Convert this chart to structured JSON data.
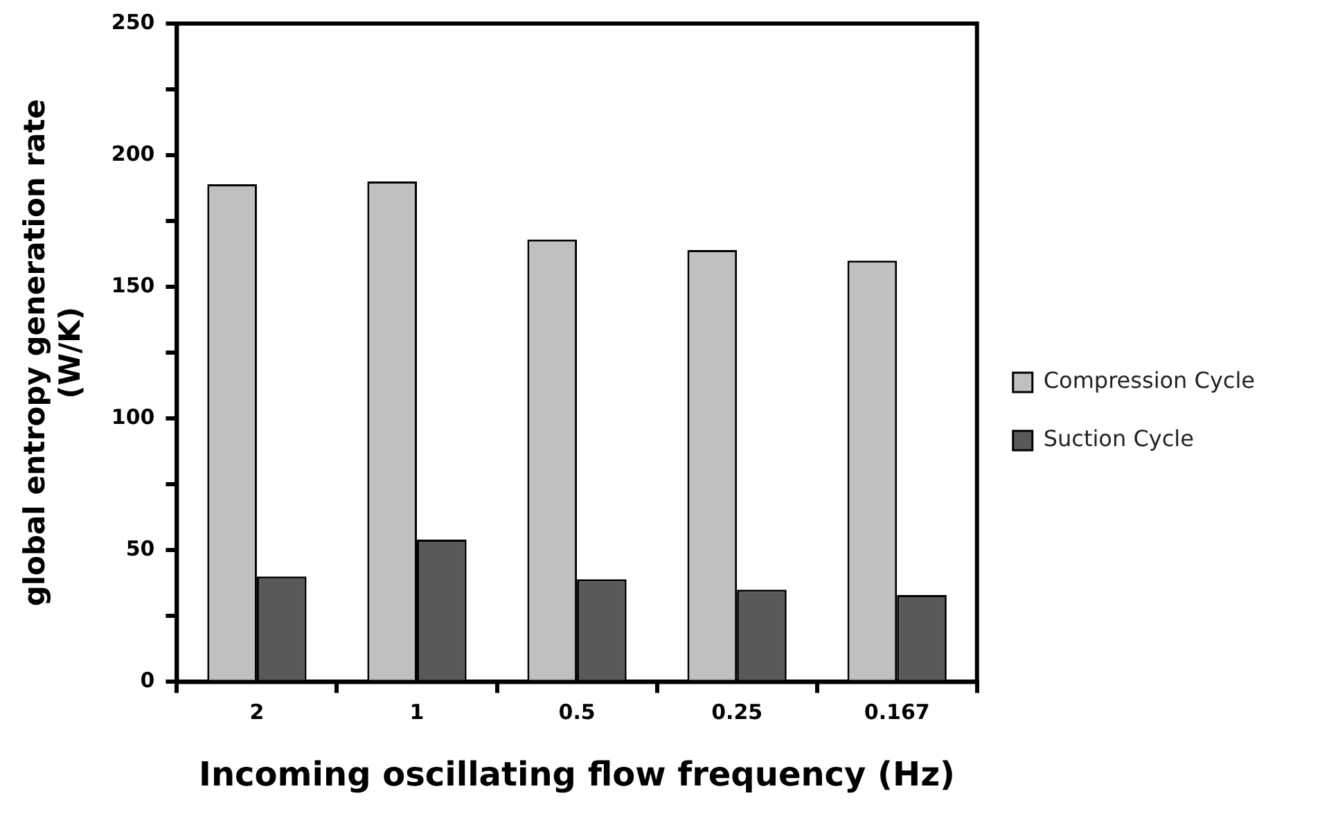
{
  "chart_data": {
    "type": "bar",
    "xlabel": "Incoming oscillating flow frequency (Hz)",
    "ylabel": "global entropy generation rate\n(W/K)",
    "categories": [
      "2",
      "1",
      "0.5",
      "0.25",
      "0.167"
    ],
    "series": [
      {
        "name": "Compression Cycle",
        "color": "#c0c0c0",
        "values": [
          189,
          190,
          168,
          164,
          160
        ]
      },
      {
        "name": "Suction Cycle",
        "color": "#595959",
        "values": [
          40,
          54,
          39,
          35,
          33
        ]
      }
    ],
    "ylim": [
      0,
      250
    ],
    "yticks": [
      0,
      {
        "value": 25,
        "label": null
      },
      50,
      {
        "value": 75,
        "label": null
      },
      100,
      {
        "value": 125,
        "label": null
      },
      150,
      {
        "value": 175,
        "label": null
      },
      200,
      {
        "value": 225,
        "label": null
      },
      250
    ],
    "grid": false,
    "legend": "right"
  }
}
